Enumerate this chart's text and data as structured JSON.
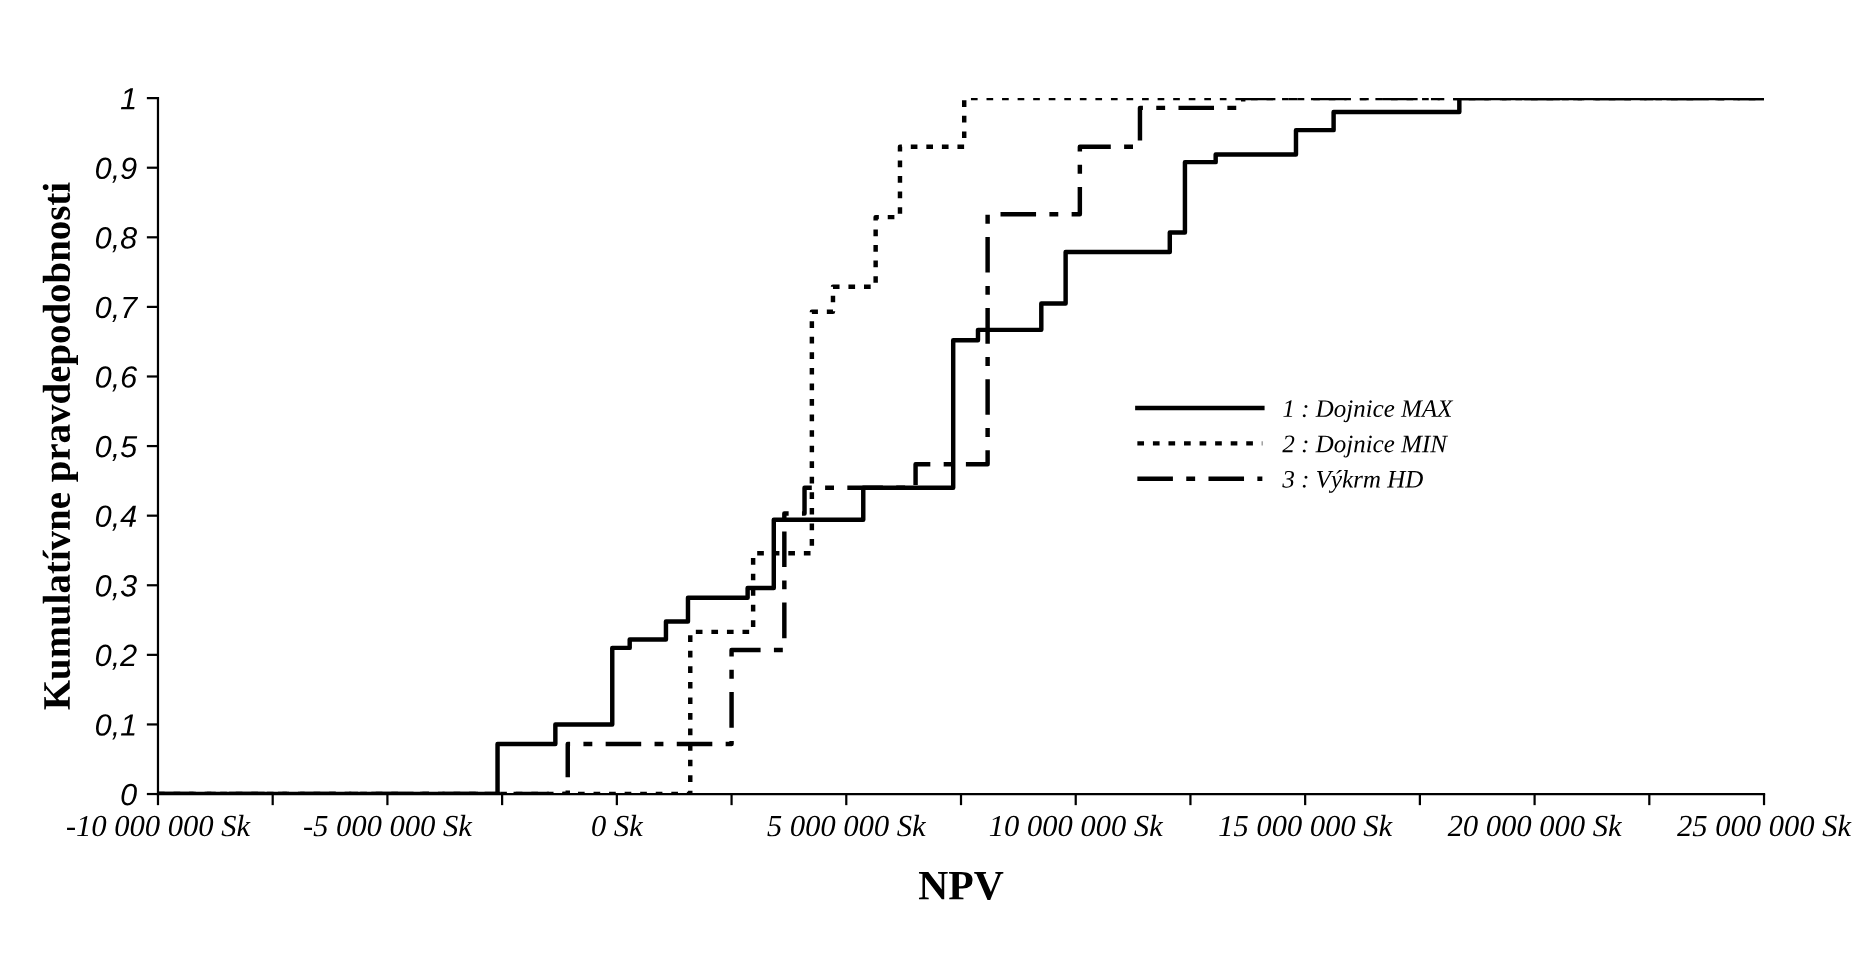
{
  "chart_data": {
    "type": "step",
    "xlabel": "NPV",
    "ylabel": "Kumulatívne pravdepodobnosti",
    "series": [
      {
        "name": "1 : Dojnice MAX",
        "color": "#000000",
        "line_style": "solid",
        "x": [
          -10000000,
          -2600000,
          -1340000,
          -100000,
          280000,
          1070000,
          1550000,
          2850000,
          3420000,
          5370000,
          7330000,
          7870000,
          9250000,
          9780000,
          12050000,
          12380000,
          13050000,
          14800000,
          15620000,
          18360000,
          25000000
        ],
        "values": [
          0,
          0.072,
          0.1,
          0.21,
          0.222,
          0.248,
          0.282,
          0.296,
          0.394,
          0.44,
          0.652,
          0.667,
          0.705,
          0.779,
          0.807,
          0.908,
          0.919,
          0.954,
          0.98,
          1.0,
          1.0
        ]
      },
      {
        "name": "2 : Dojnice MIN",
        "color": "#000000",
        "line_style": "dotted",
        "x": [
          -10000000,
          1600000,
          2970000,
          4250000,
          4710000,
          5640000,
          6170000,
          7570000,
          25000000
        ],
        "values": [
          0,
          0.233,
          0.346,
          0.693,
          0.729,
          0.829,
          0.93,
          1.0,
          1.0
        ]
      },
      {
        "name": "3 : Výkrm HD",
        "color": "#000000",
        "line_style": "dashdot",
        "x": [
          -10000000,
          -1070000,
          2500000,
          3650000,
          4090000,
          6510000,
          8080000,
          10090000,
          11400000,
          13650000,
          25000000
        ],
        "values": [
          0,
          0.072,
          0.207,
          0.403,
          0.44,
          0.474,
          0.833,
          0.93,
          0.986,
          1.0,
          1.0
        ]
      }
    ],
    "xlim": [
      -10000000,
      25000000
    ],
    "xticks": [
      {
        "value": -10000000,
        "label": "-10 000 000 Sk"
      },
      {
        "value": -7500000,
        "label": null
      },
      {
        "value": -5000000,
        "label": "-5 000 000 Sk"
      },
      {
        "value": -2500000,
        "label": null
      },
      {
        "value": 0,
        "label": "0 Sk"
      },
      {
        "value": 2500000,
        "label": null
      },
      {
        "value": 5000000,
        "label": "5 000 000 Sk"
      },
      {
        "value": 7500000,
        "label": null
      },
      {
        "value": 10000000,
        "label": "10 000 000 Sk"
      },
      {
        "value": 12500000,
        "label": null
      },
      {
        "value": 15000000,
        "label": "15 000 000 Sk"
      },
      {
        "value": 17500000,
        "label": null
      },
      {
        "value": 20000000,
        "label": "20 000 000 Sk"
      },
      {
        "value": 22500000,
        "label": null
      },
      {
        "value": 25000000,
        "label": "25 000 000 Sk"
      }
    ],
    "ylim": [
      0,
      1
    ],
    "yticks": [
      0,
      {
        "value": 0.1,
        "label": "0,1"
      },
      {
        "value": 0.2,
        "label": "0,2"
      },
      {
        "value": 0.3,
        "label": "0,3"
      },
      {
        "value": 0.4,
        "label": "0,4"
      },
      {
        "value": 0.5,
        "label": "0,5"
      },
      {
        "value": 0.6,
        "label": "0,6"
      },
      {
        "value": 0.7,
        "label": "0,7"
      },
      {
        "value": 0.8,
        "label": "0,8"
      },
      {
        "value": 0.9,
        "label": "0,9"
      },
      1
    ],
    "grid": false,
    "legend": "center right",
    "marker": "none"
  }
}
